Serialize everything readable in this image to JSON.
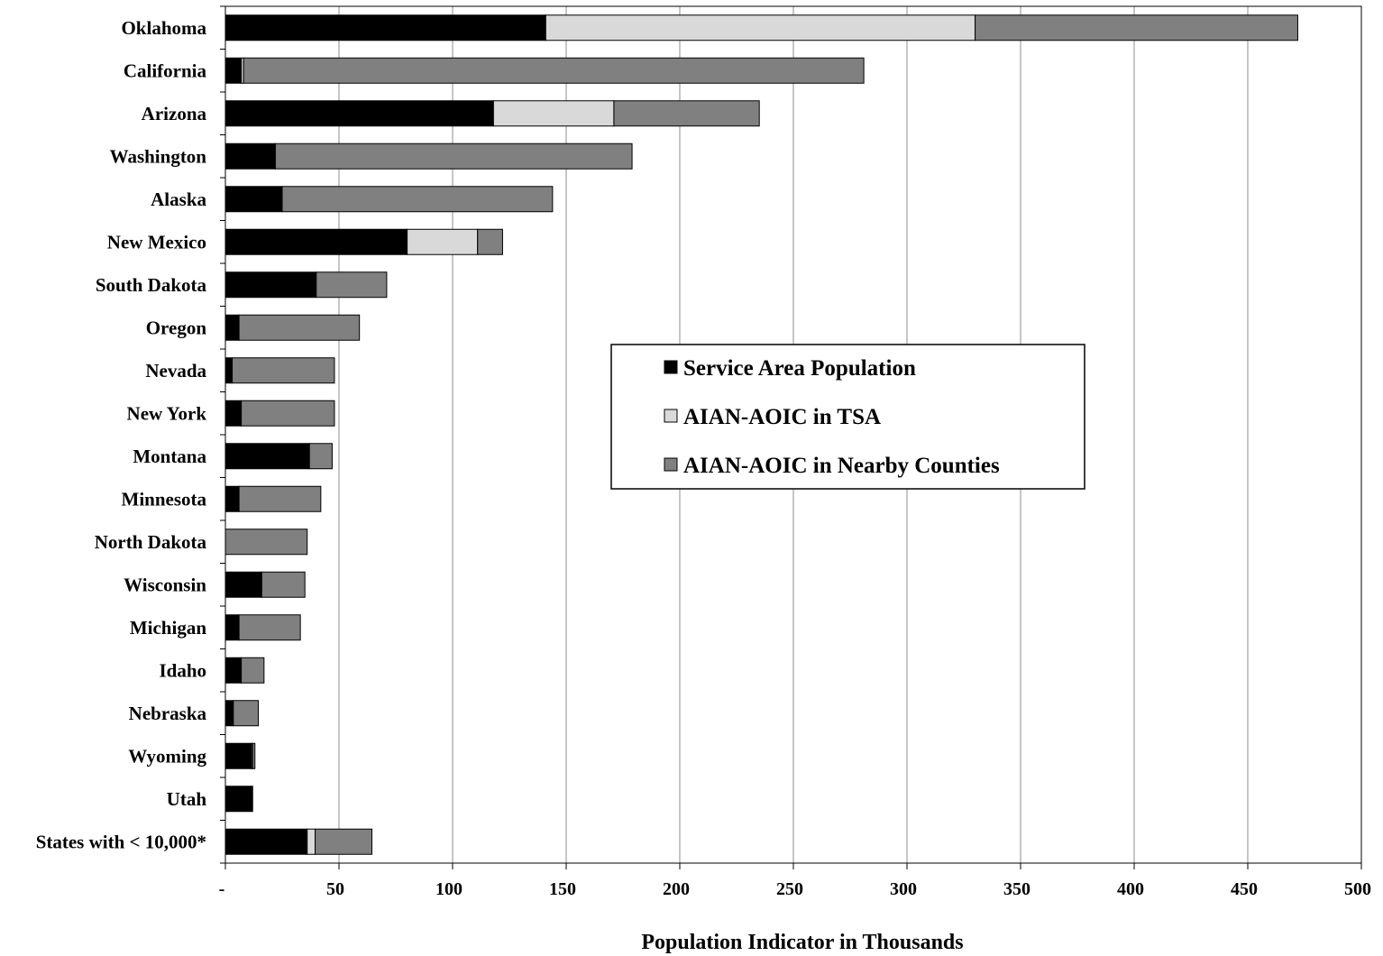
{
  "chart_data": {
    "type": "bar",
    "orientation": "horizontal",
    "stacked": true,
    "title": "",
    "xlabel": "Population Indicator in Thousands",
    "ylabel": "",
    "xlim": [
      0,
      500
    ],
    "xticks": [
      0,
      50,
      100,
      150,
      200,
      250,
      300,
      350,
      400,
      450,
      500
    ],
    "xtick_labels": [
      "-",
      "50",
      "100",
      "150",
      "200",
      "250",
      "300",
      "350",
      "400",
      "450",
      "500"
    ],
    "grid": "vertical",
    "legend_position": "center-right",
    "categories": [
      "Oklahoma",
      "California",
      "Arizona",
      "Washington",
      "Alaska",
      "New Mexico",
      "South Dakota",
      "Oregon",
      "Nevada",
      "New York",
      "Montana",
      "Minnesota",
      "North Dakota",
      "Wisconsin",
      "Michigan",
      "Idaho",
      "Nebraska",
      "Wyoming",
      "Utah",
      "States with < 10,000*"
    ],
    "series": [
      {
        "name": "Service Area Population",
        "color": "#000000",
        "values": [
          141,
          7,
          118,
          22,
          25,
          80,
          40,
          6,
          3,
          7,
          37,
          6,
          0,
          16,
          6,
          7,
          3.5,
          11.5,
          12,
          36
        ]
      },
      {
        "name": "AIAN-AOIC in TSA",
        "color": "#d9d9d9",
        "values": [
          189,
          1,
          53,
          0,
          0,
          31,
          0,
          0,
          0,
          0,
          0,
          0,
          0,
          0,
          0,
          0,
          0,
          0.5,
          0,
          3.5
        ]
      },
      {
        "name": "AIAN-AOIC in Nearby Counties",
        "color": "#808080",
        "values": [
          142,
          273,
          64,
          157,
          119,
          11,
          31,
          53,
          45,
          41,
          10,
          36,
          36,
          19,
          27,
          10,
          11,
          1,
          0,
          25
        ]
      }
    ]
  }
}
